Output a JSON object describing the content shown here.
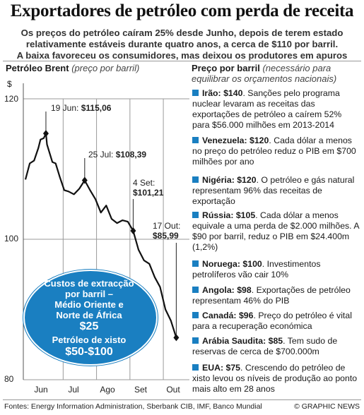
{
  "headline": "Exportadores de petróleo com perda de receita",
  "subheadlines": [
    "Os preços do petróleo caíram 25% desde Junho, depois de terem estado",
    "relativamente estáveis durante quatro anos, a cerca de $110 por barril.",
    "A baixa favoreceu os consumidores, mas deixou os produtores em apuros"
  ],
  "chart_header": {
    "bold": "Petróleo Brent",
    "italic": "(preço por barril)"
  },
  "colors": {
    "accent": "#1a7fc1",
    "line": "#111111",
    "grid": "#9a9a9a",
    "shade": "#d9d9d9"
  },
  "chart_data": {
    "type": "line",
    "title": "Petróleo Brent",
    "subtitle": "(preço por barril)",
    "ylabel": "$",
    "ylim": [
      80,
      120
    ],
    "yticks": [
      80,
      100,
      120
    ],
    "xticks": [
      "Jun",
      "Jul",
      "Ago",
      "Set",
      "Out"
    ],
    "series": [
      {
        "name": "Petróleo Brent",
        "x": [
          0,
          4,
          8,
          12,
          14,
          17,
          19,
          20,
          22,
          25,
          28,
          32,
          36,
          40,
          45,
          50,
          55,
          60,
          65,
          70,
          75,
          80,
          85,
          90,
          95,
          100,
          105,
          110,
          115,
          120,
          125,
          130,
          135,
          140
        ],
        "y": [
          108.5,
          110.8,
          111.2,
          113.0,
          114.2,
          114.4,
          115.06,
          113.5,
          112.5,
          111.0,
          110.8,
          108.8,
          107.0,
          106.8,
          106.4,
          107.2,
          108.39,
          107.0,
          105.7,
          103.8,
          104.8,
          102.9,
          102.3,
          102.7,
          102.5,
          101.21,
          98.5,
          97.0,
          96.5,
          94.6,
          93.2,
          90.0,
          88.4,
          85.99
        ]
      }
    ],
    "annotations": [
      {
        "date": "19 Jun:",
        "value": "$115,06",
        "x": 19,
        "y": 115.06
      },
      {
        "date": "25 Jul:",
        "value": "$108,39",
        "x": 55,
        "y": 108.39
      },
      {
        "date": "4 Set:",
        "value": "$101,21",
        "x": 100,
        "y": 101.21
      },
      {
        "date": "17 Out:",
        "value": "$85,99",
        "x": 140,
        "y": 85.99
      }
    ]
  },
  "callout": {
    "line1": "Custos de extracção",
    "line2": "por barril –",
    "line3": "Médio Oriente e",
    "line4": "Norte de África",
    "value1": "$25",
    "line5": "Petróleo de xisto",
    "value2": "$50-$100"
  },
  "price_header": {
    "bold": "Preço por barril",
    "italic_line1": "(necessário para",
    "italic_line2": "equilibrar os orçamentos nacionais)"
  },
  "countries": [
    {
      "country": "Irão:",
      "price": "$140",
      "text": "Sanções pelo programa nuclear levaram as receitas das exportações de petróleo a caírem 52% para $56.000 milhões em 2013-2014",
      "shaded": true
    },
    {
      "country": "Venezuela:",
      "price": "$120",
      "text": "Cada dólar a menos no preço do petróleo reduz o PIB em $700 milhões por ano",
      "shaded": false
    },
    {
      "country": "Nigéria:",
      "price": "$120",
      "text": "O petróleo e gás natural representam 96% das receitas de exportação",
      "shaded": true
    },
    {
      "country": "Rússia:",
      "price": "$105",
      "text": "Cada dólar a menos equivale a uma perda de $2.000 milhões. A $90 por barril, reduz o PIB em $24.400m (1,2%)",
      "shaded": false
    },
    {
      "country": "Noruega:",
      "price": "$100",
      "text": "Investimentos petrolíferos vão cair 10%",
      "shaded": true
    },
    {
      "country": "Angola:",
      "price": "$98",
      "text": "Exportações de petróleo representam 46% do PIB",
      "shaded": false
    },
    {
      "country": "Canadá:",
      "price": "$96",
      "text": "Preço do petróleo é vital para a recuperação económica",
      "shaded": true
    },
    {
      "country": "Arábia Saudita:",
      "price": "$85",
      "text": "Tem sudo de reservas de cerca de $700.000m",
      "shaded": false
    },
    {
      "country": "EUA:",
      "price": "$75",
      "text": "Crescendo do petróleo de xisto levou os níveis de produção ao ponto mais alto em 28 anos",
      "shaded": true
    }
  ],
  "sources": "Fontes: Energy Information Administration, Sberbank CIB, IMF, Banco Mundial",
  "credit": "© GRAPHIC NEWS"
}
